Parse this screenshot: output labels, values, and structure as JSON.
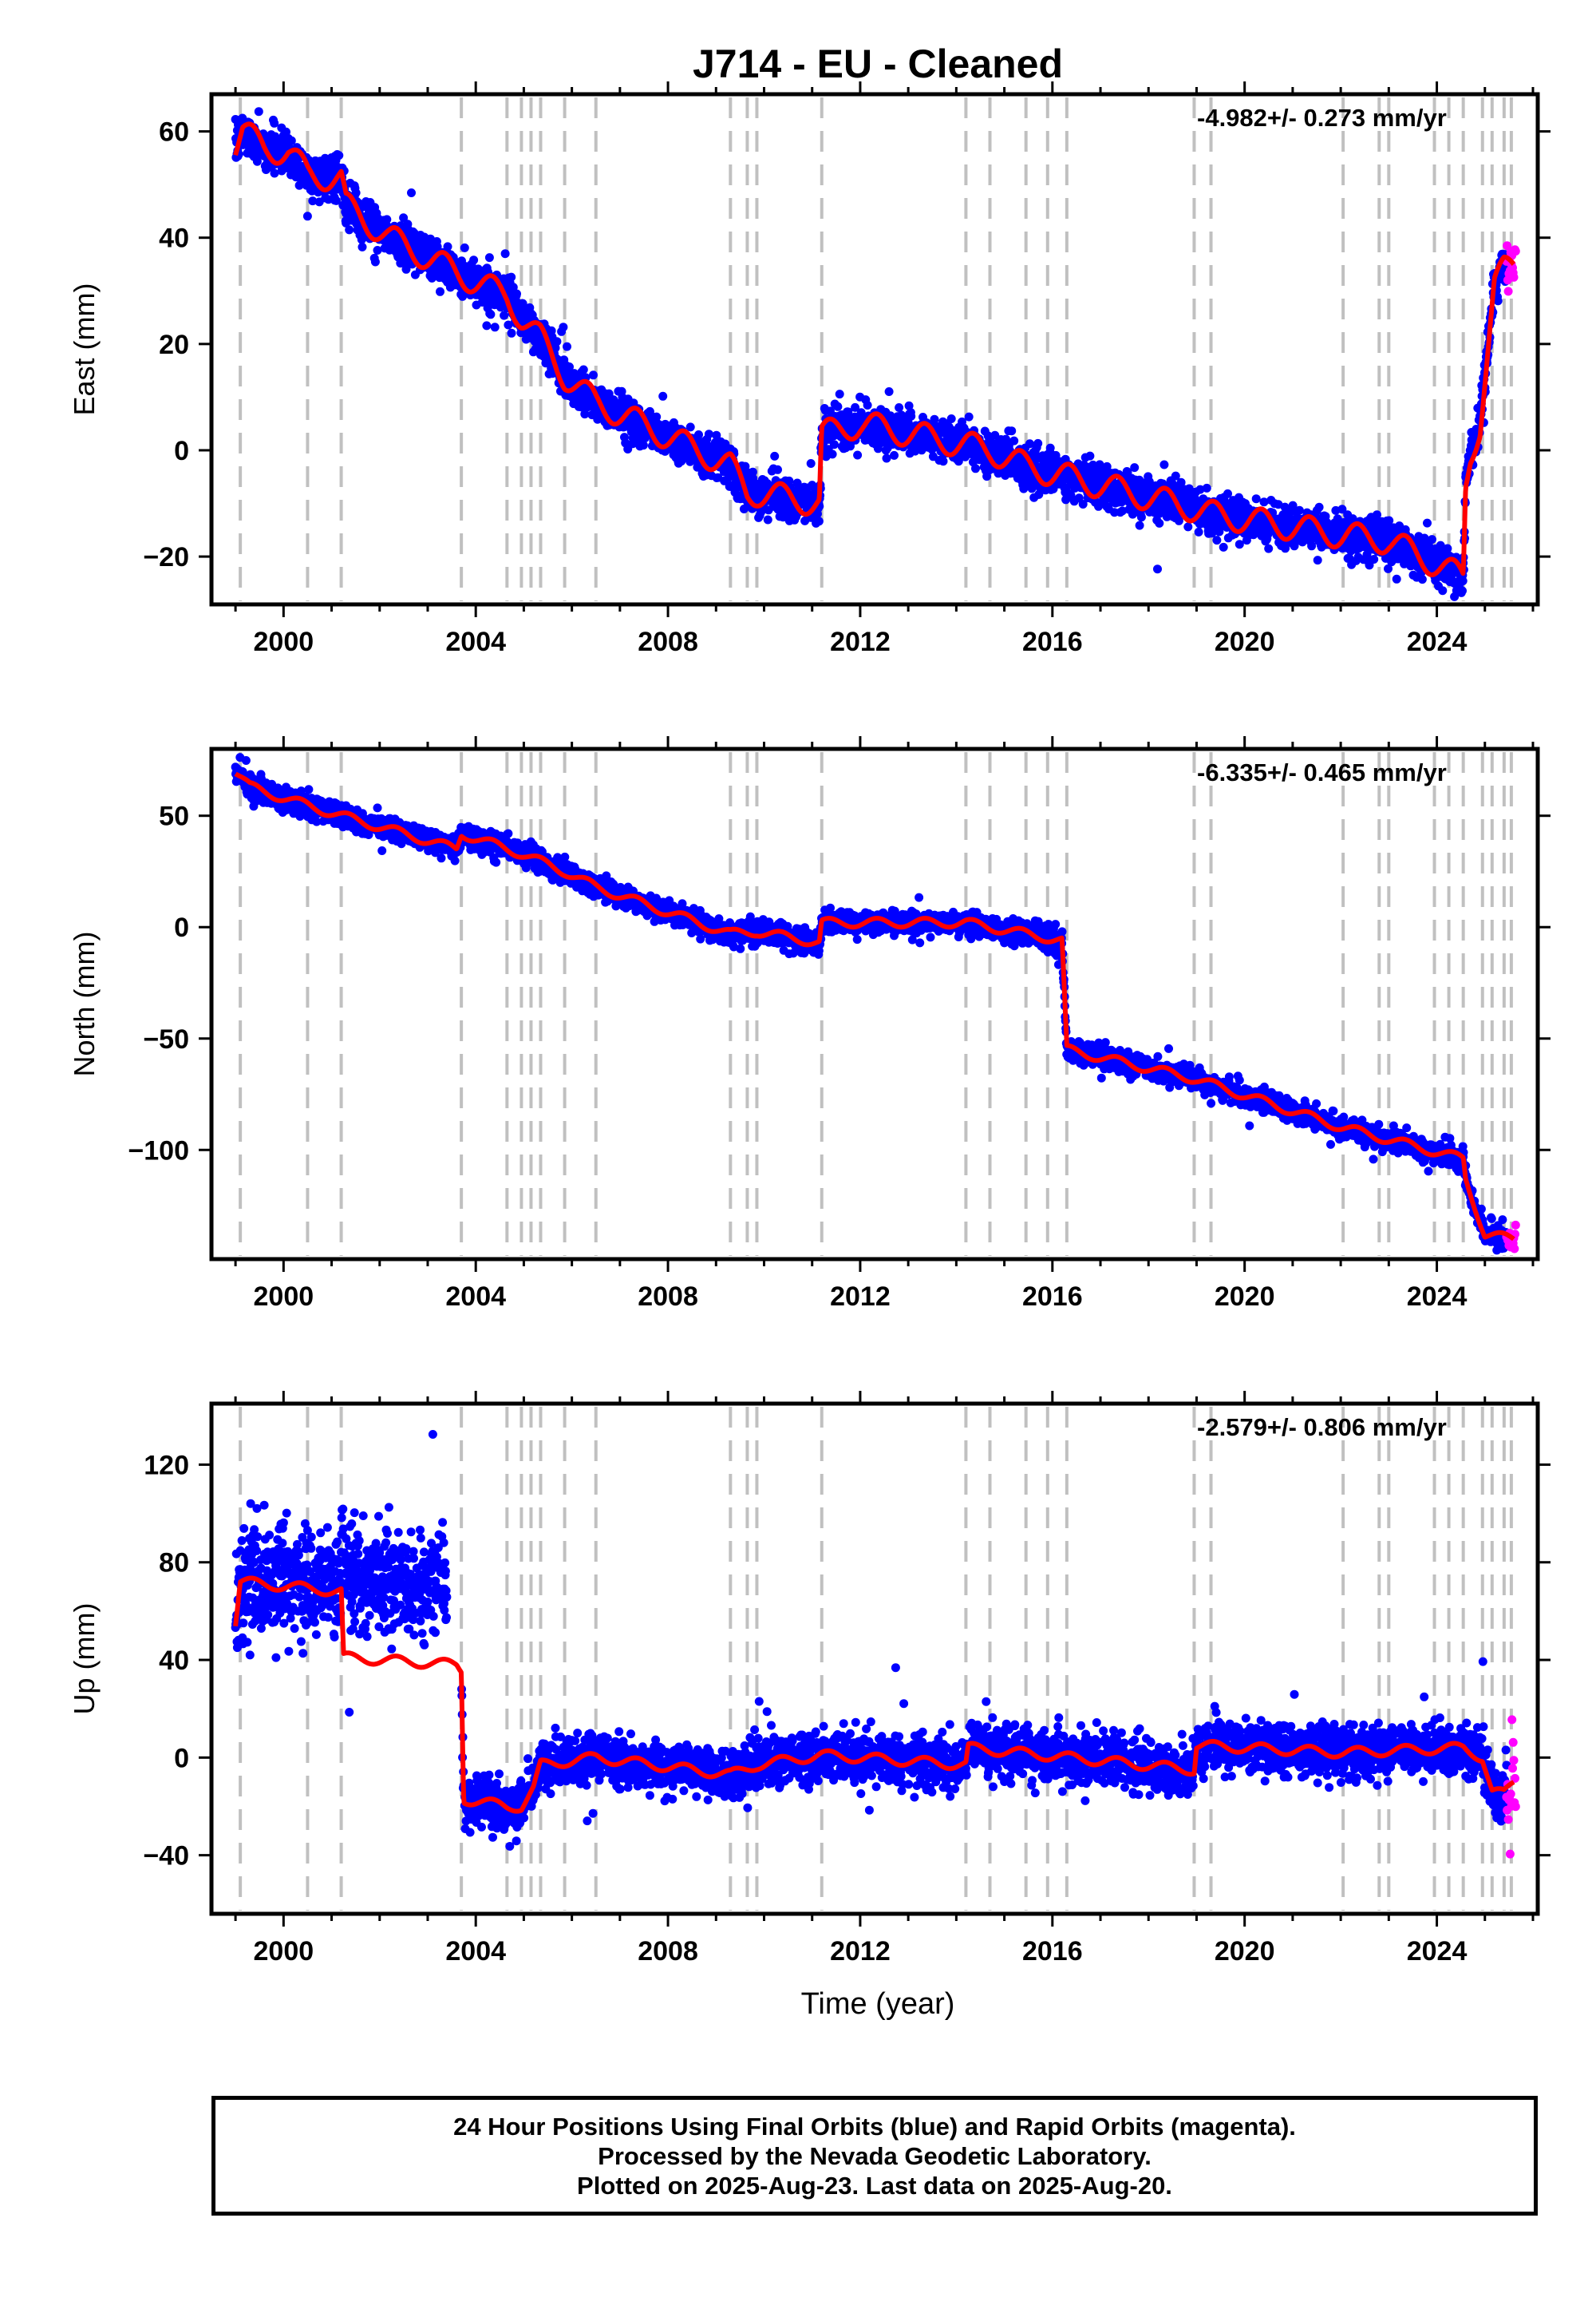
{
  "title": "J714  - EU - Cleaned",
  "xlabel": "Time (year)",
  "x_ticks": [
    "2000",
    "2004",
    "2008",
    "2012",
    "2016",
    "2020",
    "2024"
  ],
  "colors": {
    "final_points": "#0000ff",
    "rapid_points": "#ff00ff",
    "model_line": "#ff0000",
    "event_lines": "#c0c0c0"
  },
  "event_years": [
    1999.1,
    2000.5,
    2001.2,
    2003.7,
    2004.65,
    2004.95,
    2005.15,
    2005.35,
    2005.85,
    2006.5,
    2009.3,
    2009.65,
    2009.85,
    2011.2,
    2014.2,
    2014.7,
    2015.45,
    2015.9,
    2016.3,
    2018.95,
    2019.3,
    2022.05,
    2022.8,
    2023.0,
    2023.95,
    2024.25,
    2024.55,
    2024.95,
    2025.15,
    2025.4,
    2025.55
  ],
  "footer": {
    "line1": "24 Hour Positions Using Final Orbits (blue) and Rapid Orbits (magenta).",
    "line2": "Processed by the Nevada Geodetic Laboratory.",
    "line3": "Plotted on 2025-Aug-23. Last data on 2025-Aug-20."
  },
  "chart_data": [
    {
      "type": "scatter",
      "ylabel": "East (mm)",
      "rate_label": "-4.982+/- 0.273 mm/yr",
      "xlim": [
        1998.5,
        2026.1
      ],
      "ylim": [
        -29,
        67
      ],
      "y_ticks": [
        60,
        40,
        20,
        0,
        -20
      ],
      "model_line_points": [
        [
          1999.0,
          57
        ],
        [
          1999.15,
          60
        ],
        [
          1999.6,
          57
        ],
        [
          2000.1,
          56
        ],
        [
          2000.5,
          52
        ],
        [
          2001.2,
          51
        ],
        [
          2001.3,
          46
        ],
        [
          2002.2,
          40
        ],
        [
          2003.7,
          33
        ],
        [
          2004.65,
          29
        ],
        [
          2004.95,
          25
        ],
        [
          2005.35,
          21
        ],
        [
          2005.85,
          14
        ],
        [
          2006.5,
          9
        ],
        [
          2009.3,
          -3
        ],
        [
          2009.65,
          -8
        ],
        [
          2009.85,
          -8
        ],
        [
          2011.15,
          -10
        ],
        [
          2011.2,
          3
        ],
        [
          2012.0,
          5
        ],
        [
          2014.2,
          1
        ],
        [
          2014.7,
          0
        ],
        [
          2015.45,
          -3
        ],
        [
          2016.3,
          -5
        ],
        [
          2018.95,
          -11
        ],
        [
          2019.3,
          -12
        ],
        [
          2022.05,
          -16
        ],
        [
          2023.0,
          -17
        ],
        [
          2024.55,
          -24
        ],
        [
          2024.6,
          -7
        ],
        [
          2024.7,
          -1
        ],
        [
          2024.9,
          5
        ],
        [
          2025.05,
          18
        ],
        [
          2025.2,
          31
        ],
        [
          2025.4,
          34
        ],
        [
          2025.6,
          35
        ]
      ],
      "series": [
        {
          "name": "Final Orbits (blue)",
          "x_range": [
            1999.0,
            2025.45
          ]
        },
        {
          "name": "Rapid Orbits (magenta)",
          "x_range": [
            2025.45,
            2025.64
          ]
        }
      ]
    },
    {
      "type": "scatter",
      "ylabel": "North (mm)",
      "rate_label": "-6.335+/- 0.465 mm/yr",
      "xlim": [
        1998.5,
        2026.1
      ],
      "ylim": [
        -149,
        80
      ],
      "y_ticks": [
        50,
        0,
        -50,
        -100
      ],
      "model_line_points": [
        [
          1999.0,
          70
        ],
        [
          1999.3,
          63
        ],
        [
          2000.0,
          58
        ],
        [
          2001.2,
          50
        ],
        [
          2002.5,
          42
        ],
        [
          2003.6,
          35
        ],
        [
          2003.7,
          42
        ],
        [
          2004.95,
          33
        ],
        [
          2005.85,
          25
        ],
        [
          2006.5,
          18
        ],
        [
          2009.3,
          -3
        ],
        [
          2009.85,
          -2
        ],
        [
          2011.15,
          -7
        ],
        [
          2011.2,
          2
        ],
        [
          2014.2,
          2
        ],
        [
          2016.2,
          -6
        ],
        [
          2016.3,
          -55
        ],
        [
          2018.95,
          -68
        ],
        [
          2022.05,
          -90
        ],
        [
          2024.55,
          -104
        ],
        [
          2024.6,
          -113
        ],
        [
          2025.0,
          -138
        ],
        [
          2025.6,
          -140
        ]
      ],
      "series": [
        {
          "name": "Final Orbits (blue)",
          "x_range": [
            1999.0,
            2025.45
          ]
        },
        {
          "name": "Rapid Orbits (magenta)",
          "x_range": [
            2025.45,
            2025.64
          ]
        }
      ]
    },
    {
      "type": "scatter",
      "ylabel": "Up (mm)",
      "rate_label": "-2.579+/- 0.806 mm/yr",
      "xlim": [
        1998.5,
        2026.1
      ],
      "ylim": [
        -64,
        145
      ],
      "y_ticks": [
        120,
        80,
        40,
        0,
        -40
      ],
      "data_gap": [
        2003.4,
        2003.7
      ],
      "model_line_points": [
        [
          1999.0,
          55
        ],
        [
          1999.1,
          72
        ],
        [
          2001.2,
          68
        ],
        [
          2001.25,
          41
        ],
        [
          2003.6,
          38
        ],
        [
          2003.7,
          36
        ],
        [
          2003.75,
          -17
        ],
        [
          2004.65,
          -20
        ],
        [
          2004.95,
          -20
        ],
        [
          2005.2,
          -13
        ],
        [
          2005.35,
          -3
        ],
        [
          2006.5,
          0
        ],
        [
          2009.3,
          -7
        ],
        [
          2009.85,
          -3
        ],
        [
          2011.2,
          1
        ],
        [
          2014.2,
          -3
        ],
        [
          2014.25,
          4
        ],
        [
          2018.95,
          -5
        ],
        [
          2019.0,
          5
        ],
        [
          2022.05,
          2
        ],
        [
          2024.55,
          4
        ],
        [
          2024.95,
          0
        ],
        [
          2025.15,
          -14
        ],
        [
          2025.4,
          -15
        ],
        [
          2025.6,
          -10
        ]
      ],
      "series": [
        {
          "name": "Final Orbits (blue)",
          "x_range": [
            1999.0,
            2025.45
          ]
        },
        {
          "name": "Rapid Orbits (magenta)",
          "x_range": [
            2025.45,
            2025.64
          ]
        }
      ]
    }
  ]
}
